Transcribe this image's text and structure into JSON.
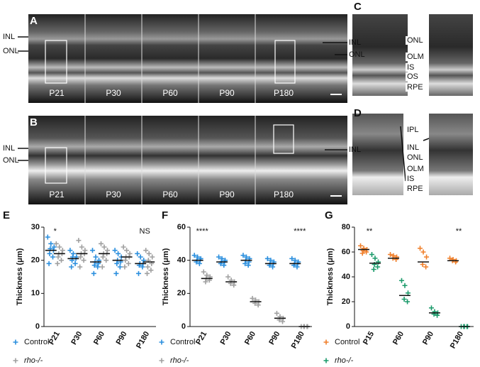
{
  "panels": [
    {
      "letter": "A",
      "left_labels": [
        "INL",
        "ONL"
      ],
      "right_labels": [
        "INL",
        "ONL"
      ],
      "time_labels": [
        "P21",
        "P30",
        "P60",
        "P90",
        "P180"
      ]
    },
    {
      "letter": "B",
      "left_labels": [
        "INL",
        "ONL"
      ],
      "right_labels": [
        "INL"
      ],
      "time_labels": [
        "P21",
        "P30",
        "P60",
        "P90",
        "P180"
      ]
    },
    {
      "letter": "C",
      "labels": [
        "ONL",
        "OLM",
        "IS",
        "OS",
        "RPE"
      ]
    },
    {
      "letter": "D",
      "labels": [
        "IPL",
        "INL",
        "ONL",
        "OLM",
        "IS",
        "RPE"
      ]
    }
  ],
  "chart_data": [
    {
      "type": "scatter",
      "letter": "E",
      "y_label": "Thickness (μm)",
      "categories": [
        "P21",
        "P30",
        "P60",
        "P90",
        "P180"
      ],
      "ylim": [
        0,
        30
      ],
      "yticks": [
        0,
        10,
        20,
        30
      ],
      "annotations": [
        {
          "text": "*",
          "category": 0
        },
        {
          "text": "NS",
          "category": 4
        }
      ],
      "series": [
        {
          "name": "Control",
          "color": "#2b8fde",
          "values": [
            [
              27,
              25,
              24,
              23.5,
              23,
              22,
              21,
              19
            ],
            [
              23,
              22,
              21,
              21,
              20.5,
              20,
              19,
              18
            ],
            [
              23,
              21,
              20,
              19.5,
              19,
              18.5,
              18,
              16
            ],
            [
              23,
              22,
              21,
              20,
              19.5,
              19,
              18,
              16
            ],
            [
              22,
              21,
              20,
              19,
              19,
              18.5,
              18,
              16
            ]
          ],
          "means": [
            23,
            20.5,
            19.5,
            20,
            19
          ]
        },
        {
          "name": "rho-/-",
          "color": "#a0a0a0",
          "values": [
            [
              25,
              24,
              23,
              22,
              22,
              21,
              20,
              19
            ],
            [
              26,
              24,
              23,
              22,
              22,
              21,
              20,
              18
            ],
            [
              25,
              24,
              23,
              22,
              22,
              21,
              20,
              18
            ],
            [
              24,
              23,
              22,
              21,
              21,
              20,
              19,
              18
            ],
            [
              23,
              22,
              21,
              20,
              19,
              18,
              17,
              16
            ]
          ],
          "means": [
            22,
            22,
            22,
            21,
            19.5
          ]
        }
      ]
    },
    {
      "type": "scatter",
      "letter": "F",
      "y_label": "Thickness (μm)",
      "categories": [
        "P21",
        "P30",
        "P60",
        "P90",
        "P180"
      ],
      "ylim": [
        0,
        60
      ],
      "yticks": [
        0,
        20,
        40,
        60
      ],
      "annotations": [
        {
          "text": "****",
          "category": 0
        },
        {
          "text": "****",
          "category": 4
        }
      ],
      "series": [
        {
          "name": "Control",
          "color": "#2b8fde",
          "values": [
            [
              43,
              42,
              41,
              40,
              40,
              39,
              38
            ],
            [
              42,
              41,
              40,
              39,
              39,
              38,
              37
            ],
            [
              43,
              42,
              41,
              40,
              39,
              38,
              37
            ],
            [
              41,
              40,
              39,
              38,
              38,
              37,
              36
            ],
            [
              41,
              40,
              39,
              38,
              38,
              37,
              36
            ]
          ],
          "means": [
            40,
            39,
            40,
            38,
            38
          ]
        },
        {
          "name": "rho-/-",
          "color": "#a0a0a0",
          "values": [
            [
              33,
              31,
              30,
              29,
              28,
              27
            ],
            [
              30,
              28,
              27,
              26,
              25
            ],
            [
              17,
              16,
              15,
              14,
              13
            ],
            [
              8,
              6,
              5,
              4,
              3
            ],
            [
              0,
              0,
              0,
              0,
              0
            ]
          ],
          "means": [
            29,
            27,
            15,
            5,
            0
          ]
        }
      ]
    },
    {
      "type": "scatter",
      "letter": "G",
      "y_label": "Thickness (μm)",
      "categories": [
        "P15",
        "P60",
        "P90",
        "P180"
      ],
      "ylim": [
        0,
        80
      ],
      "yticks": [
        0,
        20,
        40,
        60,
        80
      ],
      "annotations": [
        {
          "text": "**",
          "category": 0
        },
        {
          "text": "**",
          "category": 3
        }
      ],
      "series": [
        {
          "name": "Control",
          "color": "#f07f2a",
          "values": [
            [
              65,
              63,
              62,
              61,
              60,
              59
            ],
            [
              58,
              57,
              56,
              55,
              54
            ],
            [
              63,
              60,
              56,
              50,
              48
            ],
            [
              55,
              54,
              53,
              53,
              52
            ]
          ],
          "means": [
            62,
            55,
            52,
            53
          ]
        },
        {
          "name": "rho-/-",
          "color": "#1a9a6a",
          "values": [
            [
              58,
              55,
              52,
              50,
              48,
              46
            ],
            [
              37,
              33,
              27,
              22,
              20
            ],
            [
              15,
              12,
              11,
              10,
              9
            ],
            [
              0,
              0,
              0,
              0,
              0
            ]
          ],
          "means": [
            51,
            25,
            11,
            0
          ]
        }
      ]
    }
  ]
}
